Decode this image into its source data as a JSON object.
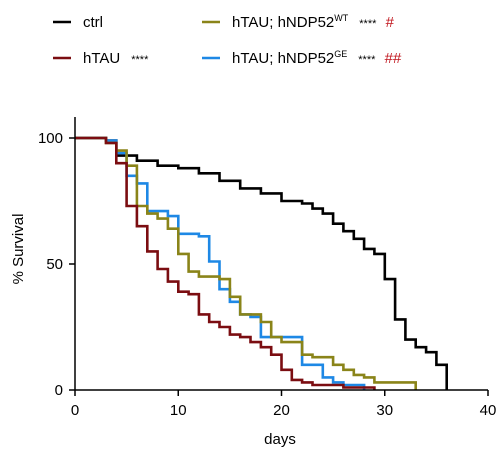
{
  "chart_data": {
    "type": "line",
    "step": true,
    "title": "",
    "xlabel": "days",
    "ylabel": "% Survival",
    "xlim": [
      0,
      40
    ],
    "ylim": [
      0,
      100
    ],
    "xticks": [
      "0",
      "10",
      "20",
      "30",
      "40"
    ],
    "yticks": [
      "0",
      "50",
      "100"
    ],
    "grid": false,
    "legend_position": "top",
    "series": [
      {
        "key": "ctrl",
        "name": "ctrl",
        "superscript": "",
        "stars": "",
        "sig": "",
        "color": "#000000",
        "points": [
          [
            0,
            100
          ],
          [
            3,
            99
          ],
          [
            4,
            93
          ],
          [
            6,
            91
          ],
          [
            8,
            89
          ],
          [
            10,
            88
          ],
          [
            12,
            86
          ],
          [
            14,
            83
          ],
          [
            16,
            80
          ],
          [
            18,
            78
          ],
          [
            20,
            75
          ],
          [
            22,
            74
          ],
          [
            23,
            72
          ],
          [
            24,
            70
          ],
          [
            25,
            66
          ],
          [
            26,
            63
          ],
          [
            27,
            60
          ],
          [
            28,
            56
          ],
          [
            29,
            54
          ],
          [
            30,
            44
          ],
          [
            31,
            28
          ],
          [
            32,
            20
          ],
          [
            33,
            17
          ],
          [
            34,
            15
          ],
          [
            35,
            10
          ],
          [
            36,
            10
          ],
          [
            36,
            0
          ]
        ]
      },
      {
        "key": "htau",
        "name": "hTAU",
        "superscript": "",
        "stars": "****",
        "sig": "",
        "color": "#7b0d11",
        "points": [
          [
            0,
            100
          ],
          [
            3,
            98
          ],
          [
            4,
            90
          ],
          [
            5,
            73
          ],
          [
            6,
            65
          ],
          [
            7,
            55
          ],
          [
            8,
            48
          ],
          [
            9,
            43
          ],
          [
            10,
            39
          ],
          [
            11,
            38
          ],
          [
            12,
            30
          ],
          [
            13,
            27
          ],
          [
            14,
            25
          ],
          [
            15,
            22
          ],
          [
            16,
            21
          ],
          [
            17,
            19
          ],
          [
            18,
            17
          ],
          [
            19,
            14
          ],
          [
            20,
            8
          ],
          [
            21,
            4
          ],
          [
            22,
            3
          ],
          [
            23,
            2
          ],
          [
            26,
            1
          ],
          [
            29,
            0
          ]
        ]
      },
      {
        "key": "wt",
        "name": "hTAU; hNDP52",
        "superscript": "WT",
        "stars": "****",
        "sig": "#",
        "color": "#8a8419",
        "points": [
          [
            0,
            100
          ],
          [
            3,
            98
          ],
          [
            4,
            95
          ],
          [
            5,
            89
          ],
          [
            6,
            73
          ],
          [
            7,
            70
          ],
          [
            8,
            68
          ],
          [
            9,
            64
          ],
          [
            10,
            54
          ],
          [
            11,
            47
          ],
          [
            12,
            45
          ],
          [
            14,
            44
          ],
          [
            15,
            37
          ],
          [
            16,
            30
          ],
          [
            18,
            27
          ],
          [
            19,
            21
          ],
          [
            20,
            19
          ],
          [
            22,
            14
          ],
          [
            23,
            13
          ],
          [
            25,
            10
          ],
          [
            26,
            8
          ],
          [
            27,
            6
          ],
          [
            28,
            5
          ],
          [
            29,
            3
          ],
          [
            30,
            3
          ],
          [
            33,
            3
          ],
          [
            33,
            0
          ]
        ]
      },
      {
        "key": "ge",
        "name": "hTAU; hNDP52",
        "superscript": "GE",
        "stars": "****",
        "sig": "##",
        "color": "#1e88e5",
        "points": [
          [
            0,
            100
          ],
          [
            3,
            99
          ],
          [
            4,
            94
          ],
          [
            5,
            85
          ],
          [
            6,
            82
          ],
          [
            7,
            71
          ],
          [
            9,
            69
          ],
          [
            10,
            62
          ],
          [
            12,
            61
          ],
          [
            13,
            51
          ],
          [
            14,
            40
          ],
          [
            15,
            35
          ],
          [
            16,
            30
          ],
          [
            17,
            29
          ],
          [
            18,
            21
          ],
          [
            19,
            21
          ],
          [
            22,
            10
          ],
          [
            23,
            10
          ],
          [
            24,
            5
          ],
          [
            25,
            3
          ],
          [
            26,
            2
          ],
          [
            28,
            2
          ],
          [
            28,
            0
          ]
        ]
      }
    ]
  }
}
